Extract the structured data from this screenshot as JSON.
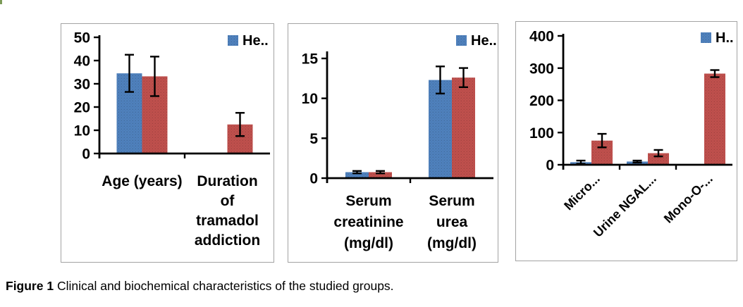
{
  "caption": {
    "label": "Figure 1",
    "text": " Clinical and biochemical characteristics of the studied groups."
  },
  "chart_data": [
    {
      "type": "bar",
      "title": "",
      "legend": {
        "label": "He..",
        "position": "top-right",
        "swatch_color": "#4f81bd"
      },
      "categories": [
        {
          "label": "Age (years)",
          "lines": [
            "Age (years)"
          ]
        },
        {
          "label": "Duration of tramadol addiction",
          "lines": [
            "Duration",
            "of",
            "tramadol",
            "addiction"
          ]
        }
      ],
      "series": [
        {
          "color": "#4f81bd",
          "values": [
            34.5,
            0
          ],
          "errors": [
            8,
            0
          ]
        },
        {
          "color": "#c0504d",
          "values": [
            33.2,
            12.5
          ],
          "errors": [
            8.5,
            5
          ]
        }
      ],
      "ylabel": "",
      "xlabel": "",
      "ylim": [
        0,
        50
      ],
      "yticks": [
        0,
        10,
        20,
        30,
        40,
        50
      ],
      "grid": false
    },
    {
      "type": "bar",
      "title": "",
      "legend": {
        "label": "He..",
        "position": "top-right",
        "swatch_color": "#4f81bd"
      },
      "categories": [
        {
          "label": "Serum creatinine (mg/dl)",
          "lines": [
            "Serum",
            "creatinine",
            "(mg/dl)"
          ]
        },
        {
          "label": "Serum urea (mg/dl)",
          "lines": [
            "Serum",
            "urea",
            "(mg/dl)"
          ]
        }
      ],
      "series": [
        {
          "color": "#4f81bd",
          "values": [
            0.75,
            12.3
          ],
          "errors": [
            0.15,
            1.7
          ]
        },
        {
          "color": "#c0504d",
          "values": [
            0.75,
            12.6
          ],
          "errors": [
            0.15,
            1.2
          ]
        }
      ],
      "ylabel": "",
      "xlabel": "",
      "ylim": [
        0,
        15
      ],
      "yticks": [
        0,
        5,
        10,
        15
      ],
      "grid": false
    },
    {
      "type": "bar",
      "title": "",
      "legend": {
        "label": "H..",
        "position": "top-right",
        "swatch_color": "#4f81bd"
      },
      "categories": [
        {
          "label": "Micro...",
          "lines": [
            "Micro..."
          ]
        },
        {
          "label": "Urine NGAL...",
          "lines": [
            "Urine NGAL..."
          ]
        },
        {
          "label": "Mono-O-...",
          "lines": [
            "Mono-O-..."
          ]
        }
      ],
      "series": [
        {
          "color": "#4f81bd",
          "values": [
            8,
            10,
            0
          ],
          "errors": [
            5,
            3,
            0
          ]
        },
        {
          "color": "#c0504d",
          "values": [
            75,
            36,
            283
          ],
          "errors": [
            21,
            10,
            11
          ]
        }
      ],
      "ylabel": "",
      "xlabel": "",
      "ylim": [
        0,
        400
      ],
      "yticks": [
        0,
        100,
        200,
        300,
        400
      ],
      "grid": false
    }
  ]
}
